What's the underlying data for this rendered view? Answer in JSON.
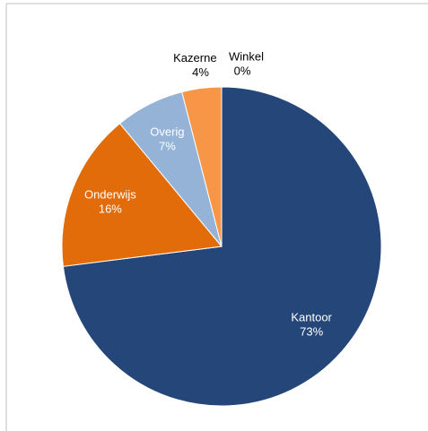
{
  "chart_data": {
    "type": "pie",
    "categories": [
      "Kantoor",
      "Onderwijs",
      "Overig",
      "Kazerne",
      "Winkel"
    ],
    "values": [
      73,
      16,
      7,
      4,
      0
    ],
    "value_labels": [
      "73%",
      "16%",
      "7%",
      "4%",
      "0%"
    ],
    "colors": [
      "#254679",
      "#e36c0a",
      "#95b3d7",
      "#f79646",
      "#4f81bd"
    ],
    "label_colors": [
      "#ffffff",
      "#ffffff",
      "#ffffff",
      "#000000",
      "#000000"
    ]
  }
}
